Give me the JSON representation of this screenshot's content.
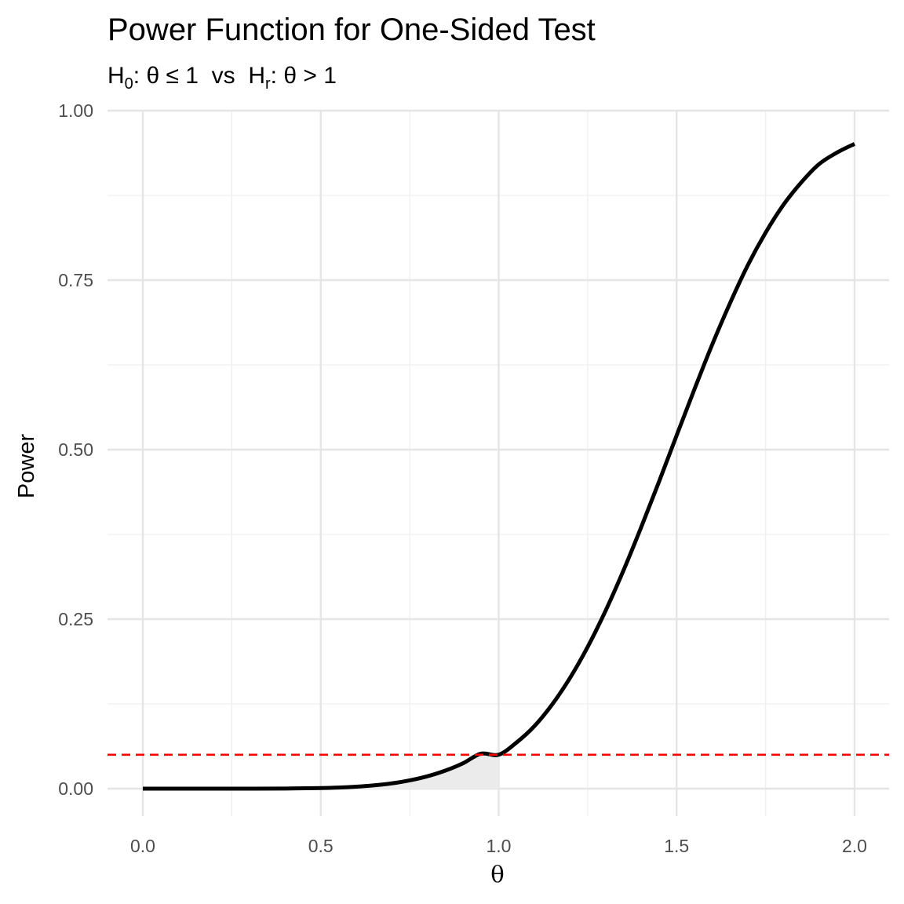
{
  "chart_data": {
    "type": "line",
    "title": "Power Function for One-Sided Test",
    "subtitle": {
      "h0_symbol": "H",
      "h0_sub": "0",
      "h0_text": ": θ ≤ 1  vs  ",
      "ha_symbol": "H",
      "ha_sub": "r",
      "ha_text": ": θ > 1"
    },
    "xlabel": "θ",
    "ylabel": "Power",
    "xlim": [
      -0.1,
      2.1
    ],
    "ylim": [
      -0.08,
      1.0
    ],
    "x_ticks": [
      0.0,
      0.5,
      1.0,
      1.5,
      2.0
    ],
    "x_tick_labels": [
      "0.0",
      "0.5",
      "1.0",
      "1.5",
      "2.0"
    ],
    "y_ticks": [
      0.0,
      0.25,
      0.5,
      0.75,
      1.0
    ],
    "y_tick_labels": [
      "0.00",
      "0.25",
      "0.50",
      "0.75",
      "1.00"
    ],
    "x_minor": [
      0.25,
      0.75,
      1.25,
      1.75
    ],
    "y_minor": [
      0.125,
      0.375,
      0.625,
      0.875
    ],
    "grid": true,
    "series": [
      {
        "color": "#000000",
        "x": [
          0.0,
          0.1,
          0.2,
          0.3,
          0.4,
          0.5,
          0.55,
          0.6,
          0.65,
          0.7,
          0.75,
          0.8,
          0.85,
          0.9,
          0.95,
          1.0,
          1.05,
          1.1,
          1.15,
          1.2,
          1.25,
          1.3,
          1.35,
          1.4,
          1.45,
          1.5,
          1.55,
          1.6,
          1.65,
          1.7,
          1.75,
          1.8,
          1.85,
          1.9,
          1.95,
          2.0
        ],
        "y": [
          0.0,
          0.0,
          0.0,
          0.0,
          0.0002,
          0.0009,
          0.0016,
          0.0029,
          0.0049,
          0.0078,
          0.0122,
          0.0183,
          0.0266,
          0.0375,
          0.0516,
          0.05,
          0.068,
          0.092,
          0.124,
          0.163,
          0.209,
          0.262,
          0.321,
          0.385,
          0.452,
          0.521,
          0.589,
          0.655,
          0.716,
          0.772,
          0.82,
          0.861,
          0.894,
          0.921,
          0.938,
          0.951
        ]
      }
    ],
    "shaded_region": {
      "description": "",
      "x_from": 0.0,
      "x_to": 1.0,
      "fill": "#ebebeb"
    },
    "reference_line": {
      "y": 0.05,
      "style": "dashed",
      "color": "#ff0000"
    }
  }
}
